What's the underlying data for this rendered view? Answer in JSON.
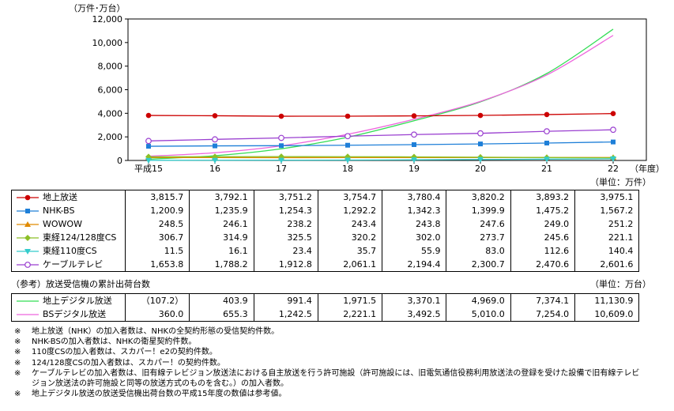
{
  "chart_data": {
    "type": "line",
    "yunit_label": "（万件･万台）",
    "xunit_label": "（年度）",
    "categories": [
      "平成15",
      "16",
      "17",
      "18",
      "19",
      "20",
      "21",
      "22"
    ],
    "yticks": [
      "0",
      "2,000",
      "4,000",
      "6,000",
      "8,000",
      "10,000",
      "12,000"
    ],
    "ylim": [
      0,
      12000
    ],
    "grid": false,
    "series": [
      {
        "name": "地上放送",
        "color": "#cc0000",
        "marker": "dot",
        "values": [
          3815.7,
          3792.1,
          3751.2,
          3754.7,
          3780.4,
          3820.2,
          3893.2,
          3975.1
        ]
      },
      {
        "name": "NHK-BS",
        "color": "#1e7fd8",
        "marker": "square",
        "values": [
          1200.9,
          1235.9,
          1254.3,
          1292.2,
          1342.3,
          1399.9,
          1475.2,
          1567.2
        ]
      },
      {
        "name": "WOWOW",
        "color": "#e08a00",
        "marker": "triangle",
        "values": [
          248.5,
          246.1,
          238.2,
          243.4,
          243.8,
          247.6,
          249.0,
          251.2
        ]
      },
      {
        "name": "東経124/128度CS",
        "color": "#8cbf26",
        "marker": "diamond",
        "values": [
          306.7,
          314.9,
          325.5,
          320.2,
          302.0,
          273.7,
          245.6,
          221.1
        ]
      },
      {
        "name": "東経110度CS",
        "color": "#33cccc",
        "marker": "tri-down",
        "values": [
          11.5,
          16.1,
          23.4,
          35.7,
          55.9,
          83.0,
          112.6,
          140.4
        ]
      },
      {
        "name": "ケーブルテレビ",
        "color": "#9a3fd0",
        "marker": "circle",
        "values": [
          1653.8,
          1788.2,
          1912.8,
          2061.1,
          2194.4,
          2300.7,
          2470.6,
          2601.6
        ]
      },
      {
        "name": "地上デジタル放送",
        "color": "#33dd55",
        "marker": "none",
        "values": [
          107.2,
          403.9,
          991.4,
          1971.5,
          3370.1,
          4969.0,
          7374.1,
          11130.9
        ]
      },
      {
        "name": "BSデジタル放送",
        "color": "#ee66dd",
        "marker": "none",
        "values": [
          360.0,
          655.3,
          1242.5,
          2221.1,
          3492.5,
          5010.0,
          7254.0,
          10609.0
        ]
      }
    ]
  },
  "table1": {
    "unit": "（単位：万件）",
    "rows": [
      {
        "label": "地上放送",
        "cells": [
          "3,815.7",
          "3,792.1",
          "3,751.2",
          "3,754.7",
          "3,780.4",
          "3,820.2",
          "3,893.2",
          "3,975.1"
        ]
      },
      {
        "label": "NHK-BS",
        "cells": [
          "1,200.9",
          "1,235.9",
          "1,254.3",
          "1,292.2",
          "1,342.3",
          "1,399.9",
          "1,475.2",
          "1,567.2"
        ]
      },
      {
        "label": "WOWOW",
        "cells": [
          "248.5",
          "246.1",
          "238.2",
          "243.4",
          "243.8",
          "247.6",
          "249.0",
          "251.2"
        ]
      },
      {
        "label": "東経124/128度CS",
        "cells": [
          "306.7",
          "314.9",
          "325.5",
          "320.2",
          "302.0",
          "273.7",
          "245.6",
          "221.1"
        ]
      },
      {
        "label": "東経110度CS",
        "cells": [
          "11.5",
          "16.1",
          "23.4",
          "35.7",
          "55.9",
          "83.0",
          "112.6",
          "140.4"
        ]
      },
      {
        "label": "ケーブルテレビ",
        "cells": [
          "1,653.8",
          "1,788.2",
          "1,912.8",
          "2,061.1",
          "2,194.4",
          "2,300.7",
          "2,470.6",
          "2,601.6"
        ]
      }
    ]
  },
  "table2": {
    "title": "（参考）放送受信機の累計出荷台数",
    "unit": "（単位：万台）",
    "rows": [
      {
        "label": "地上デジタル放送",
        "cells": [
          "（107.2）",
          "403.9",
          "991.4",
          "1,971.5",
          "3,370.1",
          "4,969.0",
          "7,374.1",
          "11,130.9"
        ]
      },
      {
        "label": "BSデジタル放送",
        "cells": [
          "360.0",
          "655.3",
          "1,242.5",
          "2,221.1",
          "3,492.5",
          "5,010.0",
          "7,254.0",
          "10,609.0"
        ]
      }
    ]
  },
  "notes": {
    "mark": "※",
    "lines": [
      "地上放送（NHK）の加入者数は、NHKの全契約形態の受信契約件数。",
      "NHK-BSの加入者数は、NHKの衛星契約件数。",
      "110度CSの加入者数は、スカパー！e2の契約件数。",
      "124/128度CSの加入者数は、スカパー！の契約件数。",
      "ケーブルテレビの加入者数は、旧有線テレビジョン放送法における自主放送を行う許可施設（許可施設には、旧電気通信役務利用放送法の登録を受けた設備で旧有線テレビ",
      "ジョン放送法の許可施設と同等の放送方式のものを含む。）の加入者数。",
      "地上デジタル放送の放送受信機出荷台数の平成15年度の数値は参考値。"
    ]
  }
}
